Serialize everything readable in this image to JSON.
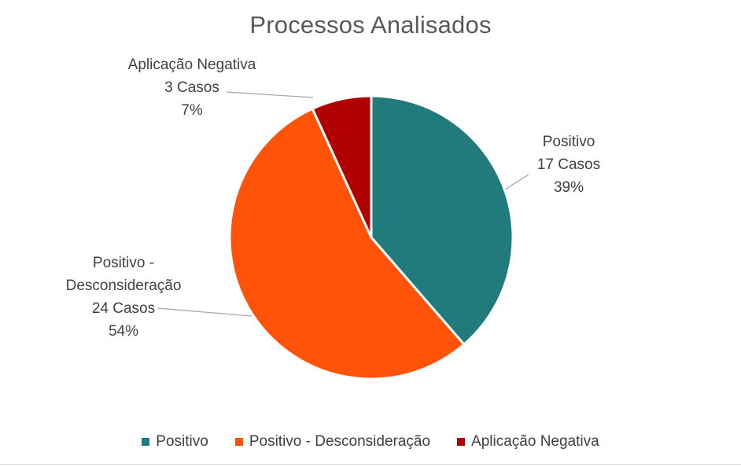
{
  "chart_data": {
    "type": "pie",
    "title": "Processos Analisados",
    "slices": [
      {
        "name": "Positivo",
        "value": 17,
        "cases_label": "17 Casos",
        "percent_label": "39%",
        "color": "#217A7C"
      },
      {
        "name": "Positivo - Desconsideração",
        "value": 24,
        "cases_label": "24 Casos",
        "percent_label": "54%",
        "color": "#FF5309"
      },
      {
        "name": "Aplicação Negativa",
        "value": 3,
        "cases_label": "3 Casos",
        "percent_label": "7%",
        "color": "#B00000"
      }
    ],
    "legend_position": "bottom"
  }
}
